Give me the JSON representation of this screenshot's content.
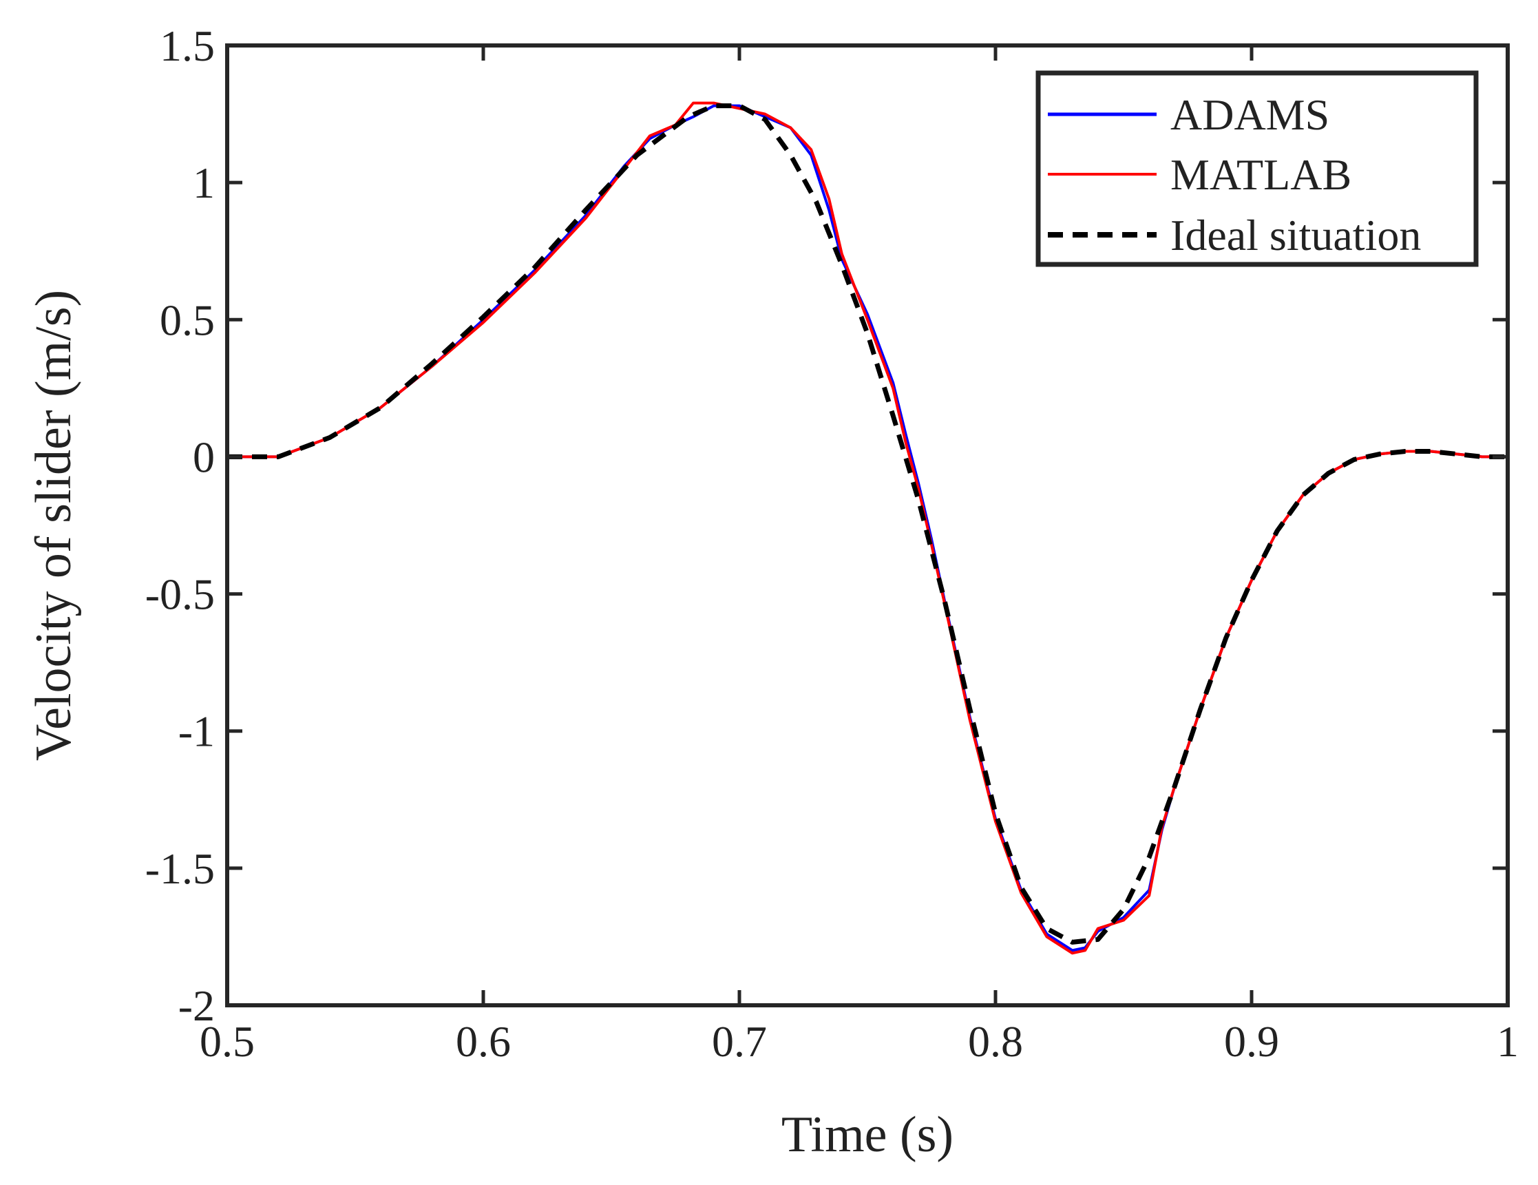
{
  "chart_data": {
    "type": "line",
    "title": "",
    "xlabel": "Time (s)",
    "ylabel": "Velocity of slider (m/s)",
    "xlim": [
      0.5,
      1.0
    ],
    "ylim": [
      -2.0,
      1.5
    ],
    "xticks": [
      0.5,
      0.6,
      0.7,
      0.8,
      0.9,
      1.0
    ],
    "xtick_labels": [
      "0.5",
      "0.6",
      "0.7",
      "0.8",
      "0.9",
      "1"
    ],
    "yticks": [
      1.5,
      1.0,
      0.5,
      0.0,
      -0.5,
      -1.0,
      -1.5,
      -2.0
    ],
    "ytick_labels": [
      "1.5",
      "1",
      "0.5",
      "0",
      "-0.5",
      "-1",
      "-1.5",
      "-2"
    ],
    "grid": false,
    "legend_position": "top-right",
    "series": [
      {
        "name": "ADAMS",
        "color": "#0000ff",
        "style": "solid",
        "x": [
          0.5,
          0.52,
          0.54,
          0.56,
          0.58,
          0.6,
          0.62,
          0.64,
          0.655,
          0.665,
          0.675,
          0.682,
          0.69,
          0.7,
          0.71,
          0.72,
          0.728,
          0.735,
          0.74,
          0.75,
          0.76,
          0.765,
          0.77,
          0.775,
          0.78,
          0.79,
          0.8,
          0.81,
          0.82,
          0.83,
          0.835,
          0.84,
          0.85,
          0.86,
          0.865,
          0.87,
          0.88,
          0.89,
          0.9,
          0.91,
          0.92,
          0.93,
          0.94,
          0.95,
          0.96,
          0.97,
          0.98,
          0.99,
          1.0
        ],
        "y": [
          0.0,
          0.0,
          0.07,
          0.18,
          0.33,
          0.5,
          0.68,
          0.88,
          1.06,
          1.16,
          1.21,
          1.24,
          1.28,
          1.28,
          1.24,
          1.2,
          1.1,
          0.9,
          0.72,
          0.52,
          0.27,
          0.08,
          -0.1,
          -0.3,
          -0.52,
          -0.95,
          -1.32,
          -1.58,
          -1.74,
          -1.8,
          -1.79,
          -1.73,
          -1.68,
          -1.58,
          -1.36,
          -1.2,
          -0.92,
          -0.66,
          -0.45,
          -0.27,
          -0.14,
          -0.06,
          -0.01,
          0.01,
          0.02,
          0.02,
          0.01,
          0.0,
          0.0
        ]
      },
      {
        "name": "MATLAB",
        "color": "#ff0000",
        "style": "solid",
        "x": [
          0.5,
          0.52,
          0.54,
          0.56,
          0.58,
          0.6,
          0.62,
          0.64,
          0.655,
          0.665,
          0.675,
          0.682,
          0.69,
          0.7,
          0.71,
          0.72,
          0.728,
          0.735,
          0.74,
          0.75,
          0.76,
          0.765,
          0.77,
          0.775,
          0.78,
          0.79,
          0.8,
          0.81,
          0.82,
          0.83,
          0.835,
          0.84,
          0.85,
          0.86,
          0.865,
          0.87,
          0.88,
          0.89,
          0.9,
          0.91,
          0.92,
          0.93,
          0.94,
          0.95,
          0.96,
          0.97,
          0.98,
          0.99,
          1.0
        ],
        "y": [
          0.0,
          0.0,
          0.07,
          0.18,
          0.33,
          0.49,
          0.67,
          0.87,
          1.05,
          1.17,
          1.21,
          1.29,
          1.29,
          1.27,
          1.25,
          1.2,
          1.12,
          0.94,
          0.74,
          0.5,
          0.25,
          0.05,
          -0.12,
          -0.32,
          -0.53,
          -0.96,
          -1.33,
          -1.59,
          -1.75,
          -1.81,
          -1.8,
          -1.72,
          -1.69,
          -1.6,
          -1.35,
          -1.2,
          -0.92,
          -0.66,
          -0.45,
          -0.27,
          -0.14,
          -0.06,
          -0.01,
          0.01,
          0.02,
          0.02,
          0.01,
          0.0,
          0.0
        ]
      },
      {
        "name": "Ideal situation",
        "color": "#000000",
        "style": "dashed",
        "x": [
          0.5,
          0.52,
          0.54,
          0.56,
          0.58,
          0.6,
          0.62,
          0.64,
          0.66,
          0.68,
          0.69,
          0.7,
          0.71,
          0.72,
          0.73,
          0.74,
          0.75,
          0.76,
          0.77,
          0.78,
          0.79,
          0.8,
          0.81,
          0.82,
          0.83,
          0.84,
          0.85,
          0.86,
          0.87,
          0.88,
          0.89,
          0.9,
          0.91,
          0.92,
          0.93,
          0.94,
          0.95,
          0.96,
          0.97,
          0.98,
          0.99,
          1.0
        ],
        "y": [
          0.0,
          0.0,
          0.07,
          0.18,
          0.34,
          0.51,
          0.69,
          0.9,
          1.1,
          1.24,
          1.28,
          1.28,
          1.23,
          1.1,
          0.93,
          0.7,
          0.45,
          0.15,
          -0.16,
          -0.52,
          -0.92,
          -1.3,
          -1.57,
          -1.72,
          -1.77,
          -1.76,
          -1.65,
          -1.46,
          -1.2,
          -0.92,
          -0.66,
          -0.45,
          -0.27,
          -0.14,
          -0.06,
          -0.01,
          0.01,
          0.02,
          0.02,
          0.01,
          0.0,
          0.0
        ]
      }
    ]
  }
}
